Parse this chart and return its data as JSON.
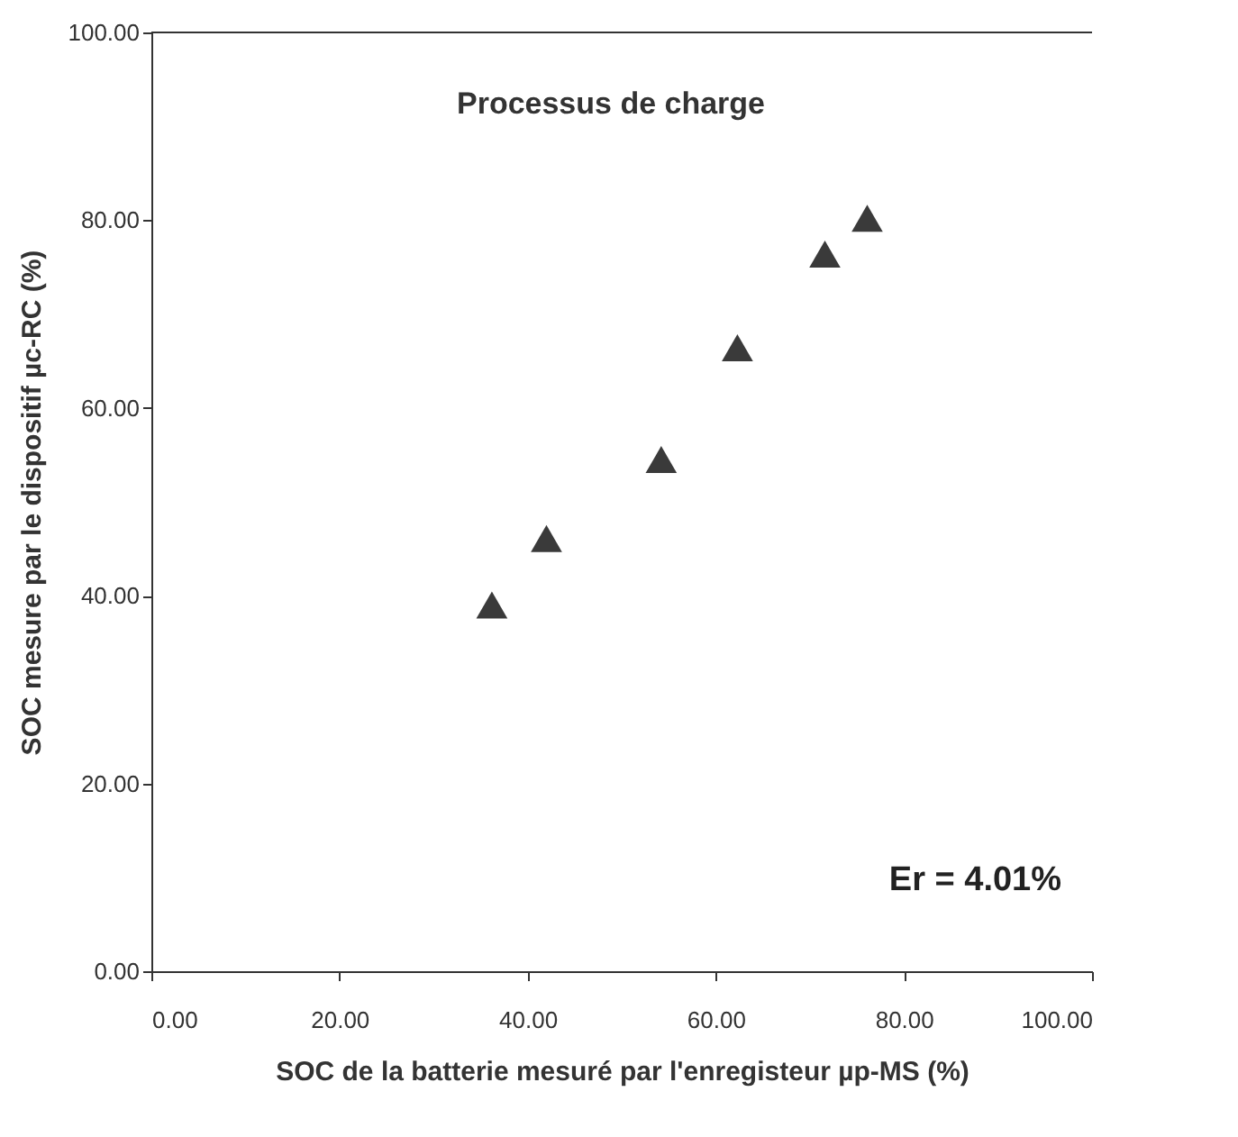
{
  "chart_data": {
    "type": "scatter",
    "title": "Processus de charge",
    "xlabel": "SOC de la batterie mesuré par l'enregisteur µp-MS (%)",
    "ylabel": "SOC mesure par le dispositif µc-RC (%)",
    "annotations": [
      "Er = 4.01%"
    ],
    "x": [
      36.2,
      42.0,
      54.2,
      62.3,
      71.6,
      76.1
    ],
    "series": [
      {
        "color": "#3a3a3a",
        "values": [
          39.0,
          46.1,
          54.5,
          66.4,
          76.4,
          80.2
        ]
      }
    ],
    "marker": "triangle",
    "grid": false,
    "legend": false,
    "xlim": [
      0,
      100
    ],
    "ylim": [
      0,
      100
    ],
    "xticks": [
      {
        "value": 0,
        "label": "0.00"
      },
      {
        "value": 20,
        "label": "20.00"
      },
      {
        "value": 40,
        "label": "40.00"
      },
      {
        "value": 60,
        "label": "60.00"
      },
      {
        "value": 80,
        "label": "80.00"
      },
      {
        "value": 100,
        "label": "100.00"
      }
    ],
    "yticks": [
      {
        "value": 0,
        "label": "0.00"
      },
      {
        "value": 20,
        "label": "20.00"
      },
      {
        "value": 40,
        "label": "40.00"
      },
      {
        "value": 60,
        "label": "60.00"
      },
      {
        "value": 80,
        "label": "80.00"
      },
      {
        "value": 100,
        "label": "100.00"
      }
    ]
  }
}
